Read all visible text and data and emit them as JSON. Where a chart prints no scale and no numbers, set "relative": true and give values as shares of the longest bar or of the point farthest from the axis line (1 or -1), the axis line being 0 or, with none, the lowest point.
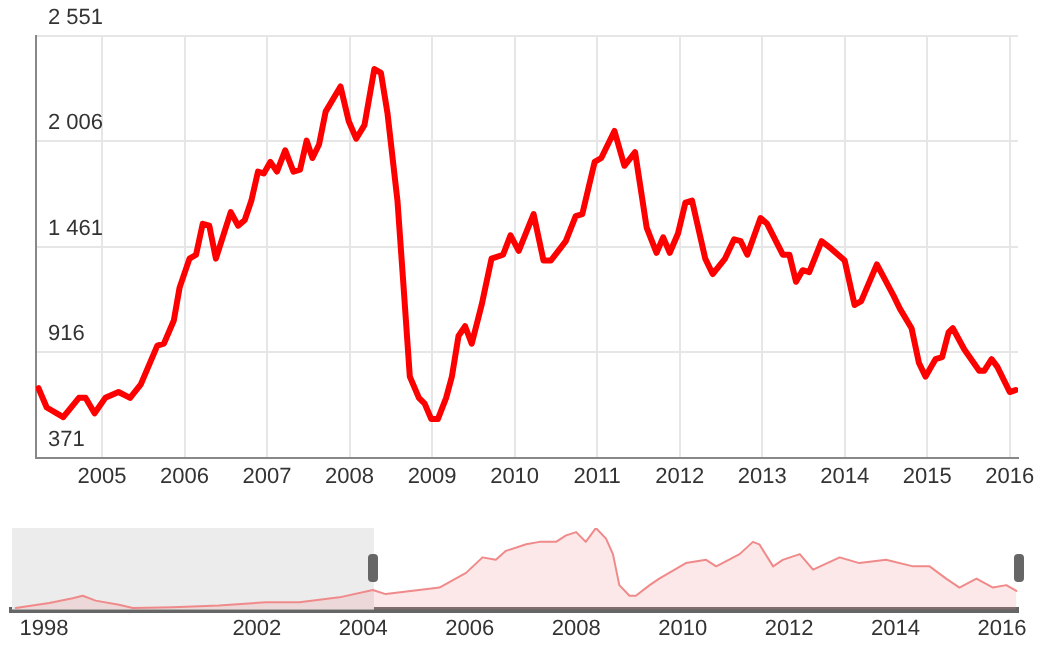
{
  "chart_data": [
    {
      "type": "line",
      "x": [
        2004.23,
        2004.33,
        2004.53,
        2004.72,
        2004.8,
        2004.91,
        2005.04,
        2005.2,
        2005.34,
        2005.47,
        2005.67,
        2005.75,
        2005.87,
        2005.94,
        2006.06,
        2006.14,
        2006.22,
        2006.3,
        2006.38,
        2006.56,
        2006.65,
        2006.73,
        2006.81,
        2006.89,
        2006.96,
        2007.04,
        2007.12,
        2007.22,
        2007.32,
        2007.4,
        2007.48,
        2007.55,
        2007.63,
        2007.71,
        2007.89,
        2007.99,
        2008.08,
        2008.18,
        2008.3,
        2008.38,
        2008.46,
        2008.58,
        2008.65,
        2008.73,
        2008.84,
        2008.91,
        2008.99,
        2009.07,
        2009.17,
        2009.24,
        2009.32,
        2009.4,
        2009.48,
        2009.6,
        2009.72,
        2009.86,
        2009.95,
        2010.05,
        2010.23,
        2010.35,
        2010.44,
        2010.62,
        2010.74,
        2010.82,
        2010.97,
        2011.05,
        2011.21,
        2011.33,
        2011.46,
        2011.6,
        2011.72,
        2011.8,
        2011.88,
        2011.98,
        2012.07,
        2012.15,
        2012.31,
        2012.4,
        2012.55,
        2012.66,
        2012.74,
        2012.82,
        2012.98,
        2013.06,
        2013.25,
        2013.33,
        2013.41,
        2013.49,
        2013.57,
        2013.72,
        2013.84,
        2014.0,
        2014.12,
        2014.2,
        2014.39,
        2014.59,
        2014.67,
        2014.81,
        2014.9,
        2014.98,
        2015.1,
        2015.18,
        2015.26,
        2015.31,
        2015.45,
        2015.63,
        2015.69,
        2015.78,
        2015.85,
        2016.0,
        2016.07
      ],
      "series": [
        {
          "color": "#ff0000",
          "values": [
            730,
            630,
            580,
            680,
            680,
            600,
            680,
            710,
            680,
            750,
            950,
            960,
            1080,
            1250,
            1400,
            1420,
            1580,
            1570,
            1400,
            1640,
            1570,
            1600,
            1700,
            1850,
            1840,
            1900,
            1850,
            1960,
            1850,
            1860,
            2010,
            1920,
            1990,
            2160,
            2290,
            2110,
            2020,
            2090,
            2380,
            2360,
            2150,
            1700,
            1280,
            790,
            680,
            650,
            570,
            570,
            680,
            790,
            1000,
            1050,
            960,
            1160,
            1400,
            1420,
            1520,
            1440,
            1630,
            1390,
            1390,
            1490,
            1620,
            1630,
            1900,
            1920,
            2060,
            1880,
            1950,
            1560,
            1430,
            1510,
            1430,
            1530,
            1690,
            1700,
            1400,
            1320,
            1400,
            1500,
            1490,
            1420,
            1610,
            1580,
            1420,
            1420,
            1280,
            1340,
            1330,
            1490,
            1450,
            1390,
            1160,
            1180,
            1370,
            1210,
            1140,
            1040,
            860,
            790,
            880,
            890,
            1020,
            1040,
            930,
            820,
            820,
            880,
            840,
            710,
            720
          ]
        }
      ],
      "xlim": [
        2004.2,
        2016.1
      ],
      "xticks": [
        2005,
        2006,
        2007,
        2008,
        2009,
        2010,
        2011,
        2012,
        2013,
        2014,
        2015,
        2016
      ],
      "ylim": [
        371,
        2551
      ],
      "yticks": [
        {
          "value": 371,
          "label": "371"
        },
        {
          "value": 916,
          "label": "916"
        },
        {
          "value": 1461,
          "label": "1 461"
        },
        {
          "value": 2006,
          "label": "2 006"
        },
        {
          "value": 2551,
          "label": "2 551"
        }
      ],
      "grid": true,
      "legend": false,
      "marker": "none"
    },
    {
      "type": "area",
      "relative": true,
      "x": [
        1997.47,
        1998.1,
        1998.54,
        1998.73,
        1998.97,
        1999.41,
        1999.67,
        2000.42,
        2001.29,
        2002.17,
        2002.8,
        2003.55,
        2004.18,
        2004.42,
        2004.93,
        2005.43,
        2005.93,
        2006.24,
        2006.49,
        2006.68,
        2007.06,
        2007.31,
        2007.62,
        2007.81,
        2008.0,
        2008.18,
        2008.37,
        2008.56,
        2008.69,
        2008.81,
        2009.0,
        2009.12,
        2009.38,
        2009.56,
        2010.06,
        2010.44,
        2010.63,
        2011.07,
        2011.32,
        2011.44,
        2011.7,
        2011.88,
        2012.2,
        2012.45,
        2012.95,
        2013.32,
        2013.82,
        2014.33,
        2014.64,
        2014.95,
        2015.2,
        2015.52,
        2015.83,
        2016.08,
        2016.27
      ],
      "series": [
        {
          "color": "#f08a8a",
          "values": [
            0.02,
            0.08,
            0.14,
            0.17,
            0.11,
            0.06,
            0.02,
            0.03,
            0.05,
            0.09,
            0.09,
            0.15,
            0.24,
            0.19,
            0.23,
            0.27,
            0.45,
            0.64,
            0.61,
            0.72,
            0.8,
            0.83,
            0.83,
            0.91,
            0.95,
            0.83,
            1,
            0.87,
            0.68,
            0.3,
            0.17,
            0.17,
            0.3,
            0.38,
            0.57,
            0.61,
            0.53,
            0.68,
            0.83,
            0.8,
            0.53,
            0.61,
            0.68,
            0.49,
            0.64,
            0.57,
            0.61,
            0.53,
            0.53,
            0.38,
            0.27,
            0.38,
            0.27,
            0.3,
            0.23
          ]
        }
      ],
      "xlim": [
        1997.4,
        2016.3
      ],
      "xticks": [
        1998,
        2002,
        2004,
        2006,
        2008,
        2010,
        2012,
        2014,
        2016
      ],
      "bands": [
        {
          "axis": "x",
          "from": 1997.4,
          "to": 2004.2,
          "color": "#ececec"
        }
      ],
      "tick_labels": "x",
      "grid": false,
      "legend": false,
      "marker": "none"
    }
  ]
}
